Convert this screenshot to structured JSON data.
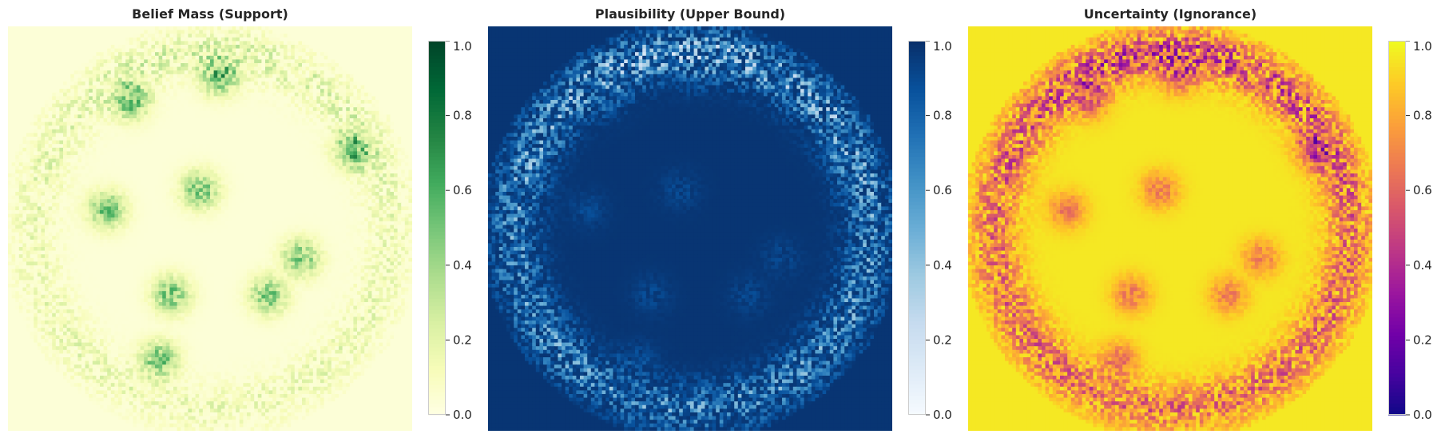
{
  "chart_data": [
    {
      "type": "heatmap",
      "title": "Belief Mass (Support)",
      "colormap": "Greens",
      "colorbar": {
        "range": [
          0,
          1
        ],
        "ticks": [
          "0.0",
          "0.2",
          "0.4",
          "0.6",
          "0.8",
          "1.0"
        ]
      },
      "grid": false,
      "axes": "off",
      "pattern": {
        "background": 0.04,
        "hotspot_peak": 0.45,
        "ring_peak": 0.25
      }
    },
    {
      "type": "heatmap",
      "title": "Plausibility (Upper Bound)",
      "colormap": "Blues",
      "colorbar": {
        "range": [
          0,
          1
        ],
        "ticks": [
          "0.0",
          "0.2",
          "0.4",
          "0.6",
          "0.8",
          "1.0"
        ]
      },
      "grid": false,
      "axes": "off",
      "pattern": {
        "background": 0.98,
        "ring_min": 0.55,
        "center": 0.97
      }
    },
    {
      "type": "heatmap",
      "title": "Uncertainty (Ignorance)",
      "colormap": "plasma",
      "colorbar": {
        "range": [
          0,
          1
        ],
        "ticks": [
          "0.0",
          "0.2",
          "0.4",
          "0.6",
          "0.8",
          "1.0"
        ]
      },
      "grid": false,
      "axes": "off",
      "pattern": {
        "background": 0.96,
        "hotspot_min": 0.6,
        "ring_min": 0.5
      }
    }
  ]
}
